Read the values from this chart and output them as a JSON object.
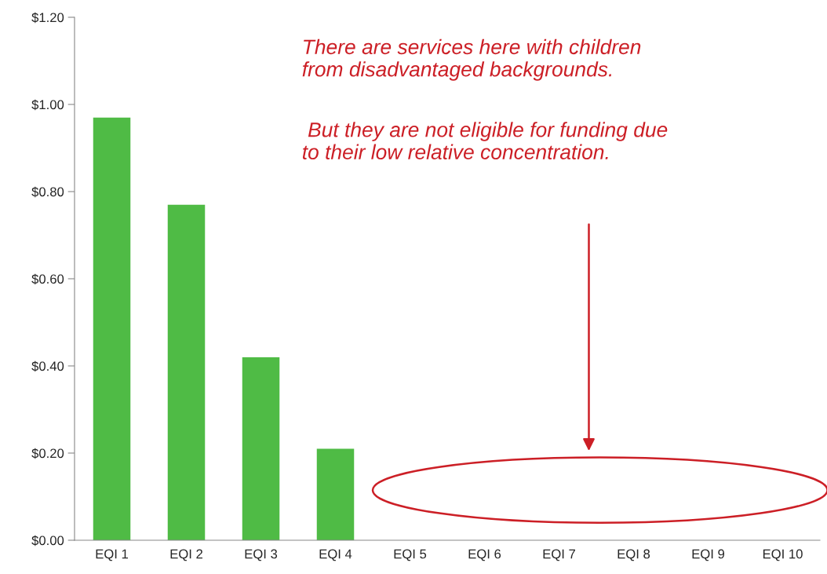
{
  "chart_data": {
    "type": "bar",
    "categories": [
      "EQI 1",
      "EQI 2",
      "EQI 3",
      "EQI 4",
      "EQI 5",
      "EQI 6",
      "EQI 7",
      "EQI 8",
      "EQI 9",
      "EQI 10"
    ],
    "values": [
      0.97,
      0.77,
      0.42,
      0.21,
      0,
      0,
      0,
      0,
      0,
      0
    ],
    "color": "#4fbb45",
    "ylim": [
      0,
      1.2
    ],
    "yticks": [
      {
        "value": 0,
        "label": "$0.00"
      },
      {
        "value": 0.2,
        "label": "$0.20"
      },
      {
        "value": 0.4,
        "label": "$0.40"
      },
      {
        "value": 0.6,
        "label": "$0.60"
      },
      {
        "value": 0.8,
        "label": "$0.80"
      },
      {
        "value": 1.0,
        "label": "$1.00"
      },
      {
        "value": 1.2,
        "label": "$1.20"
      }
    ],
    "grid": false,
    "annotations": [
      "There are services here with children\nfrom disadvantaged backgrounds.",
      " But they are not eligible for funding due\nto their low relative concentration."
    ]
  }
}
